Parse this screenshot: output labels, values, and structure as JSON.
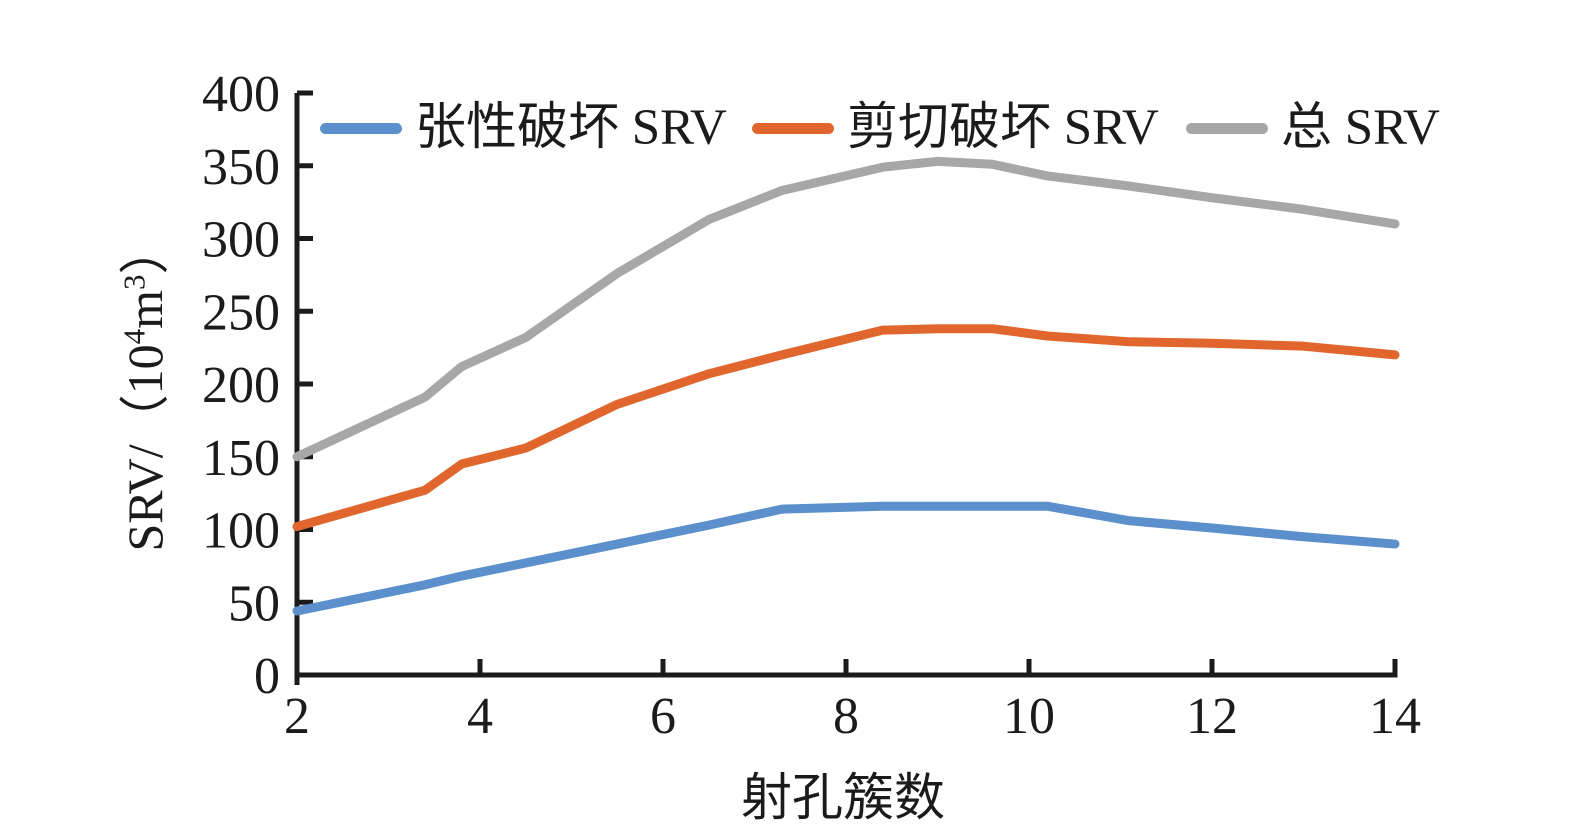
{
  "chart_data": {
    "type": "line",
    "x": [
      2,
      3.4,
      3.8,
      4.5,
      5.5,
      6.5,
      7.3,
      8.4,
      9,
      9.6,
      10.2,
      11.1,
      12,
      13,
      14
    ],
    "series": [
      {
        "key": "tensile",
        "name": "张性破坏 SRV",
        "color": "#5B90CC",
        "values": [
          44,
          62,
          68,
          77,
          90,
          103,
          114,
          116,
          116,
          116,
          116,
          106,
          101,
          95,
          90
        ]
      },
      {
        "key": "shear",
        "name": "剪切破坏 SRV",
        "color": "#E0662E",
        "values": [
          102,
          127,
          145,
          156,
          186,
          207,
          220,
          237,
          238,
          238,
          233,
          229,
          228,
          226,
          220
        ]
      },
      {
        "key": "total",
        "name": "总 SRV",
        "color": "#A7A7A7",
        "values": [
          150,
          191,
          212,
          232,
          276,
          313,
          333,
          349,
          353,
          351,
          343,
          336,
          328,
          320,
          310
        ]
      }
    ],
    "xlabel": "射孔簇数",
    "ylabel": "SRV/（10⁴m³）",
    "xlim": [
      2,
      14
    ],
    "ylim": [
      0,
      400
    ],
    "x_ticks": [
      2,
      4,
      6,
      8,
      10,
      12,
      14
    ],
    "y_ticks": [
      0,
      50,
      100,
      150,
      200,
      250,
      300,
      350,
      400
    ],
    "grid": false,
    "legend_position": "top-inside"
  },
  "axes": {
    "x_title": "射孔簇数",
    "y_title_parts": {
      "p1": "SRV/（10",
      "sup1": "4",
      "p2": "m",
      "sup2": "3",
      "p3": "）"
    },
    "axis_color": "#1b1b1b"
  }
}
